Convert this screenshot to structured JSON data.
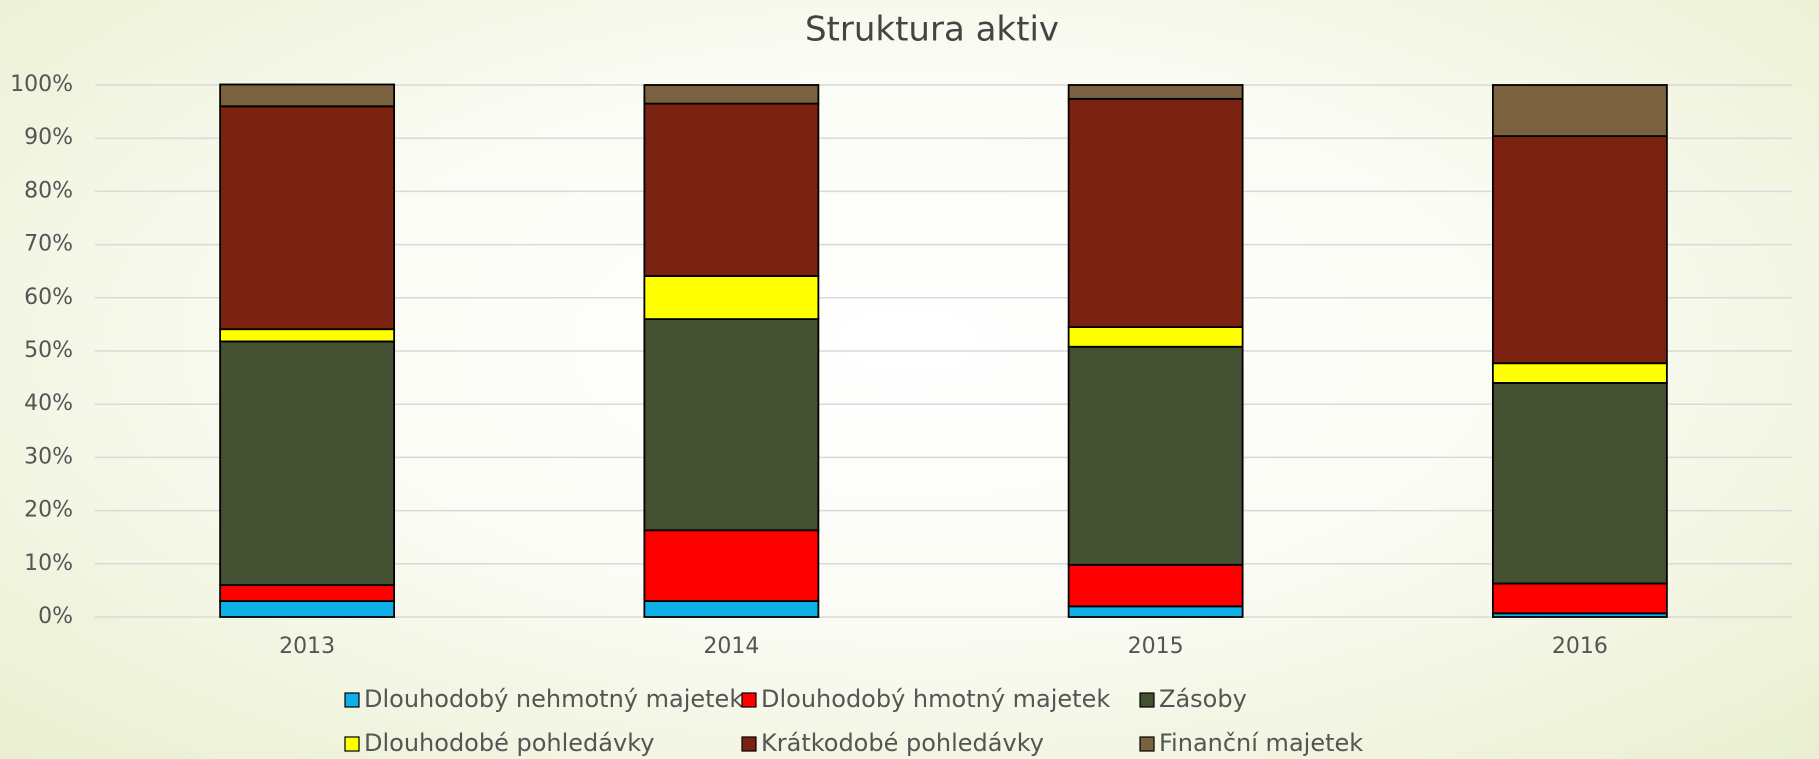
{
  "chart_data": {
    "type": "stacked_bar",
    "title": "Struktura aktiv",
    "categories": [
      "2013",
      "2014",
      "2015",
      "2016"
    ],
    "series": [
      {
        "name": "Dlouhodobý nehmotný majetek",
        "color": "#0fb0e8",
        "values": [
          3.0,
          3.0,
          2.0,
          0.7
        ]
      },
      {
        "name": "Dlouhodobý hmotný majetek",
        "color": "#ff0000",
        "values": [
          3.0,
          13.3,
          7.8,
          5.6
        ]
      },
      {
        "name": "Zásoby",
        "color": "#435032",
        "values": [
          45.8,
          39.7,
          41.0,
          37.7
        ]
      },
      {
        "name": "Dlouhodobé pohledávky",
        "color": "#ffff00",
        "values": [
          2.3,
          8.1,
          3.7,
          3.7
        ]
      },
      {
        "name": "Krátkodobé pohledávky",
        "color": "#7b2310",
        "values": [
          41.9,
          32.4,
          42.9,
          42.7
        ]
      },
      {
        "name": "Finanční majetek",
        "color": "#7a6240",
        "values": [
          4.1,
          3.5,
          2.6,
          9.6
        ]
      }
    ],
    "ylim": [
      0,
      100
    ],
    "yticks": [
      {
        "value": 0,
        "label": "0%"
      },
      {
        "value": 10,
        "label": "10%"
      },
      {
        "value": 20,
        "label": "20%"
      },
      {
        "value": 30,
        "label": "30%"
      },
      {
        "value": 40,
        "label": "40%"
      },
      {
        "value": 50,
        "label": "50%"
      },
      {
        "value": 60,
        "label": "60%"
      },
      {
        "value": 70,
        "label": "70%"
      },
      {
        "value": 80,
        "label": "80%"
      },
      {
        "value": 90,
        "label": "90%"
      },
      {
        "value": 100,
        "label": "100%"
      }
    ],
    "grid": true
  }
}
